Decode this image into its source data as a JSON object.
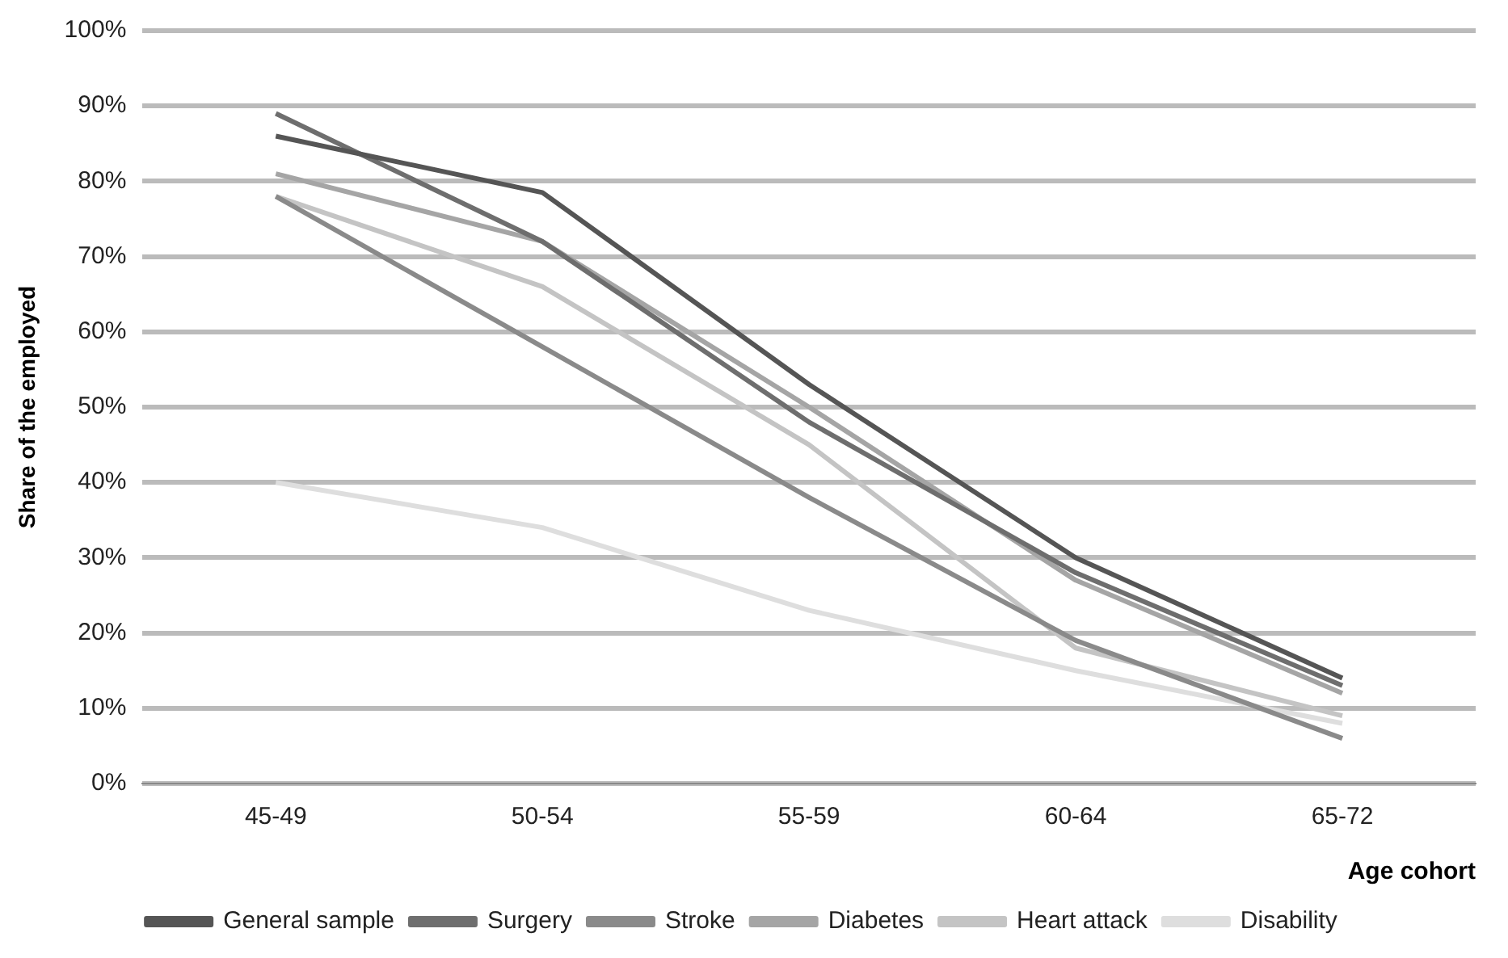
{
  "chart_data": {
    "type": "line",
    "ylabel": "Share of the employed",
    "xlabel": "Age cohort",
    "categories": [
      "45-49",
      "50-54",
      "55-59",
      "60-64",
      "65-72"
    ],
    "series": [
      {
        "name": "General sample",
        "color": "#555555",
        "values": [
          86,
          78.5,
          53,
          30,
          14
        ]
      },
      {
        "name": "Surgery",
        "color": "#6e6e6e",
        "values": [
          89,
          72,
          48,
          28,
          13
        ]
      },
      {
        "name": "Stroke",
        "color": "#8a8a8a",
        "values": [
          78,
          58,
          38,
          19,
          6
        ]
      },
      {
        "name": "Diabetes",
        "color": "#a5a5a5",
        "values": [
          81,
          72,
          50,
          27,
          12
        ]
      },
      {
        "name": "Heart attack",
        "color": "#c4c4c4",
        "values": [
          78,
          66,
          45,
          18,
          9
        ]
      },
      {
        "name": "Disability",
        "color": "#dedede",
        "values": [
          40,
          34,
          23,
          15,
          8
        ]
      }
    ],
    "ylim": [
      0,
      100
    ],
    "yticks": [
      {
        "value": 0,
        "label": "0%"
      },
      {
        "value": 10,
        "label": "10%"
      },
      {
        "value": 20,
        "label": "20%"
      },
      {
        "value": 30,
        "label": "30%"
      },
      {
        "value": 40,
        "label": "40%"
      },
      {
        "value": 50,
        "label": "50%"
      },
      {
        "value": 60,
        "label": "60%"
      },
      {
        "value": 70,
        "label": "70%"
      },
      {
        "value": 80,
        "label": "80%"
      },
      {
        "value": 90,
        "label": "90%"
      },
      {
        "value": 100,
        "label": "100%"
      }
    ],
    "grid": "y",
    "legend": "bottom",
    "marker": "none",
    "line_style": "solid"
  }
}
